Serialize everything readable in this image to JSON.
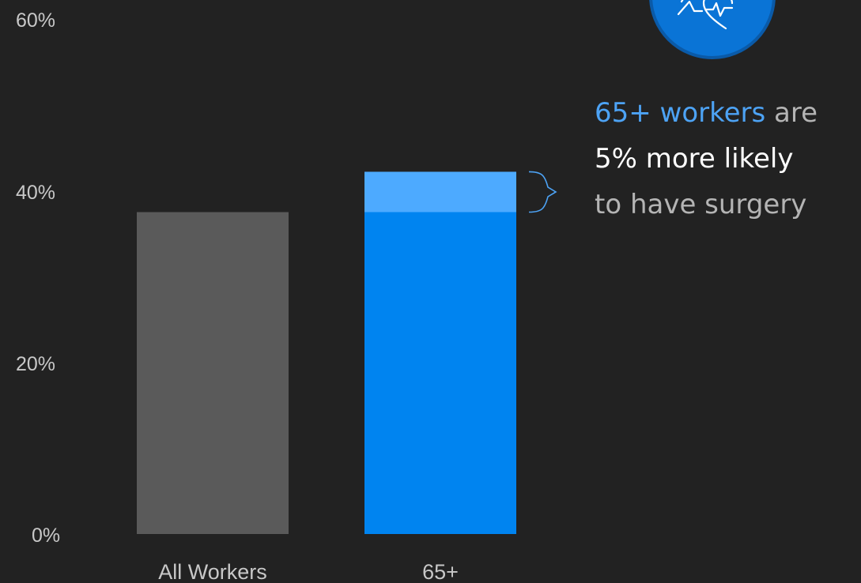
{
  "chart_data": {
    "type": "bar",
    "categories": [
      "All Workers",
      "65+"
    ],
    "series": [
      {
        "values": [
          37.5,
          37.5
        ],
        "color": "#5a5a5a",
        "highlight_color": "#0084f0"
      },
      {
        "values": [
          0,
          4.7
        ],
        "color": "#4daaff"
      }
    ],
    "yticks": [
      "0%",
      "20%",
      "40%",
      "60%"
    ],
    "ylim": [
      0,
      60
    ],
    "grid": false,
    "annotation": {
      "line1_highlight": "65+ workers",
      "line1_rest": " are",
      "line2": "5% more likely",
      "line3": "to have surgery"
    },
    "icon": "heart-rate-icon"
  }
}
